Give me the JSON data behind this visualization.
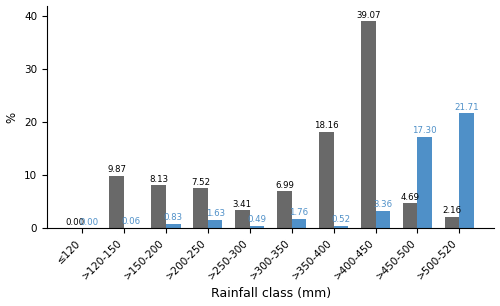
{
  "categories": [
    "≤120",
    ">120-150",
    ">150-200",
    ">200-250",
    ">250-300",
    ">300-350",
    ">350-400",
    ">400-450",
    ">450-500",
    ">500-520"
  ],
  "grey_values": [
    0.0,
    9.87,
    8.13,
    7.52,
    3.41,
    6.99,
    18.16,
    39.07,
    4.69,
    2.16
  ],
  "blue_values": [
    0.0,
    0.06,
    0.83,
    1.63,
    0.49,
    1.76,
    0.52,
    3.36,
    17.3,
    21.71
  ],
  "grey_color": "#696969",
  "blue_color": "#4f90c8",
  "ylabel": "%",
  "xlabel": "Rainfall class (mm)",
  "ylim": [
    0,
    42
  ],
  "yticks": [
    0,
    10,
    20,
    30,
    40
  ],
  "bar_width": 0.35,
  "label_fontsize": 6.2,
  "axis_label_fontsize": 8.5,
  "tick_fontsize": 7.5,
  "xlabel_fontsize": 9.0
}
